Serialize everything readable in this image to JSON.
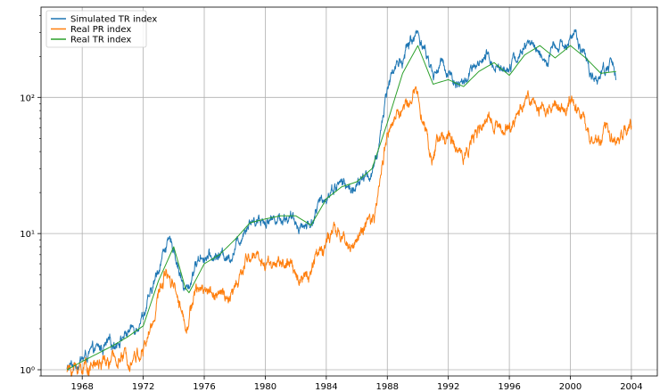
{
  "chart_data": {
    "type": "line",
    "title": "",
    "xlabel": "",
    "ylabel": "",
    "yscale": "log",
    "xlim": [
      1965.3,
      2005.7
    ],
    "ylim": [
      0.9,
      460
    ],
    "grid": true,
    "legend_position": "top-left",
    "x_ticks": [
      1968,
      1972,
      1976,
      1980,
      1984,
      1988,
      1992,
      1996,
      2000,
      2004
    ],
    "x_tick_labels": [
      "1968",
      "1972",
      "1976",
      "1980",
      "1984",
      "1988",
      "1992",
      "1996",
      "2000",
      "2004"
    ],
    "y_ticks": [
      1,
      10,
      100
    ],
    "y_tick_labels": [
      "10⁰",
      "10¹",
      "10²"
    ],
    "series": [
      {
        "name": "Simulated TR index",
        "color": "#1f77b4",
        "noise": 0.05,
        "x": [
          1967.0,
          1968.0,
          1969.0,
          1970.0,
          1970.5,
          1971.0,
          1971.5,
          1972.0,
          1972.5,
          1973.0,
          1973.5,
          1974.0,
          1974.7,
          1975.0,
          1975.3,
          1975.8,
          1976.5,
          1977.0,
          1977.7,
          1978.3,
          1978.8,
          1979.5,
          1980.0,
          1980.7,
          1981.5,
          1982.0,
          1982.5,
          1983.0,
          1983.5,
          1984.0,
          1984.5,
          1985.0,
          1985.5,
          1986.0,
          1986.5,
          1987.0,
          1987.3,
          1987.6,
          1988.0,
          1988.5,
          1989.0,
          1989.5,
          1990.0,
          1990.3,
          1990.7,
          1991.0,
          1991.5,
          1992.0,
          1992.5,
          1993.0,
          1993.5,
          1994.0,
          1994.5,
          1995.0,
          1995.5,
          1996.0,
          1996.5,
          1997.0,
          1997.5,
          1998.0,
          1998.5,
          1999.0,
          1999.5,
          2000.0,
          2000.3,
          2000.8,
          2001.3,
          2001.8,
          2002.3,
          2002.7,
          2003.0
        ],
        "values": [
          1.0,
          1.2,
          1.4,
          1.55,
          1.7,
          1.9,
          2.1,
          2.6,
          3.5,
          5.5,
          8.5,
          8.0,
          3.8,
          3.9,
          5.5,
          7.0,
          6.5,
          7.0,
          6.8,
          9.0,
          12.0,
          13.0,
          12.5,
          13.0,
          13.2,
          12.0,
          11.5,
          12.0,
          16.0,
          19.0,
          22.0,
          24.0,
          21.0,
          22.0,
          26.0,
          28.0,
          34.0,
          60.0,
          120.0,
          170.0,
          190.0,
          260.0,
          300.0,
          250.0,
          190.0,
          140.0,
          180.0,
          155.0,
          130.0,
          125.0,
          155.0,
          165.0,
          195.0,
          175.0,
          160.0,
          180.0,
          195.0,
          230.0,
          250.0,
          215.0,
          175.0,
          240.0,
          230.0,
          290.0,
          280.0,
          210.0,
          150.0,
          140.0,
          160.0,
          180.0,
          150.0
        ]
      },
      {
        "name": "Real PR index",
        "color": "#ff7f0e",
        "noise": 0.06,
        "x": [
          1967.0,
          1968.0,
          1969.0,
          1970.0,
          1970.5,
          1971.0,
          1971.5,
          1972.0,
          1972.5,
          1973.0,
          1973.5,
          1974.0,
          1974.7,
          1975.0,
          1975.3,
          1975.8,
          1976.5,
          1977.0,
          1977.7,
          1978.3,
          1978.8,
          1979.5,
          1980.0,
          1980.7,
          1981.5,
          1982.0,
          1982.5,
          1983.0,
          1983.5,
          1984.0,
          1984.5,
          1985.0,
          1985.5,
          1986.0,
          1986.5,
          1987.0,
          1987.3,
          1987.6,
          1988.0,
          1988.5,
          1989.0,
          1989.5,
          1990.0,
          1990.3,
          1990.7,
          1991.0,
          1991.5,
          1992.0,
          1992.5,
          1993.0,
          1993.5,
          1994.0,
          1994.5,
          1995.0,
          1995.5,
          1996.0,
          1996.5,
          1997.0,
          1997.5,
          1998.0,
          1998.5,
          1999.0,
          1999.5,
          2000.0,
          2000.3,
          2000.8,
          2001.3,
          2001.8,
          2002.3,
          2002.7,
          2003.0,
          2003.5,
          2004.0
        ],
        "values": [
          1.0,
          1.05,
          1.1,
          1.15,
          1.2,
          1.25,
          1.3,
          1.35,
          2.0,
          3.5,
          5.5,
          4.5,
          2.3,
          2.3,
          3.5,
          4.0,
          3.8,
          3.5,
          3.3,
          4.5,
          6.5,
          7.0,
          6.0,
          6.2,
          5.8,
          5.0,
          4.8,
          5.5,
          7.5,
          8.5,
          10.0,
          9.5,
          8.0,
          9.0,
          11.0,
          12.0,
          15.0,
          30.0,
          55.0,
          70.0,
          80.0,
          100.0,
          110.0,
          80.0,
          45.0,
          35.0,
          55.0,
          50.0,
          42.0,
          38.0,
          50.0,
          55.0,
          65.0,
          70.0,
          60.0,
          55.0,
          75.0,
          95.0,
          100.0,
          80.0,
          75.0,
          90.0,
          80.0,
          100.0,
          95.0,
          70.0,
          50.0,
          45.0,
          55.0,
          50.0,
          48.0,
          55.0,
          65.0
        ]
      },
      {
        "name": "Real TR index",
        "color": "#2ca02c",
        "noise": 0.0,
        "x": [
          1967.0,
          1968.0,
          1970.0,
          1971.0,
          1972.0,
          1973.0,
          1974.0,
          1974.9,
          1976.0,
          1977.0,
          1978.0,
          1979.0,
          1980.0,
          1981.0,
          1982.0,
          1983.0,
          1984.0,
          1985.0,
          1986.0,
          1987.0,
          1988.0,
          1989.0,
          1990.0,
          1991.0,
          1992.0,
          1993.0,
          1994.0,
          1995.0,
          1996.0,
          1997.0,
          1998.0,
          1999.0,
          2000.0,
          2001.0,
          2002.0,
          2003.0
        ],
        "values": [
          1.0,
          1.15,
          1.5,
          1.75,
          2.1,
          4.5,
          8.0,
          3.5,
          6.0,
          7.0,
          9.0,
          12.0,
          12.8,
          13.5,
          13.5,
          11.5,
          18.0,
          22.0,
          24.0,
          30.0,
          65.0,
          150.0,
          240.0,
          125.0,
          135.0,
          120.0,
          155.0,
          180.0,
          145.0,
          205.0,
          240.0,
          195.0,
          240.0,
          195.0,
          150.0,
          155.0
        ]
      }
    ]
  }
}
